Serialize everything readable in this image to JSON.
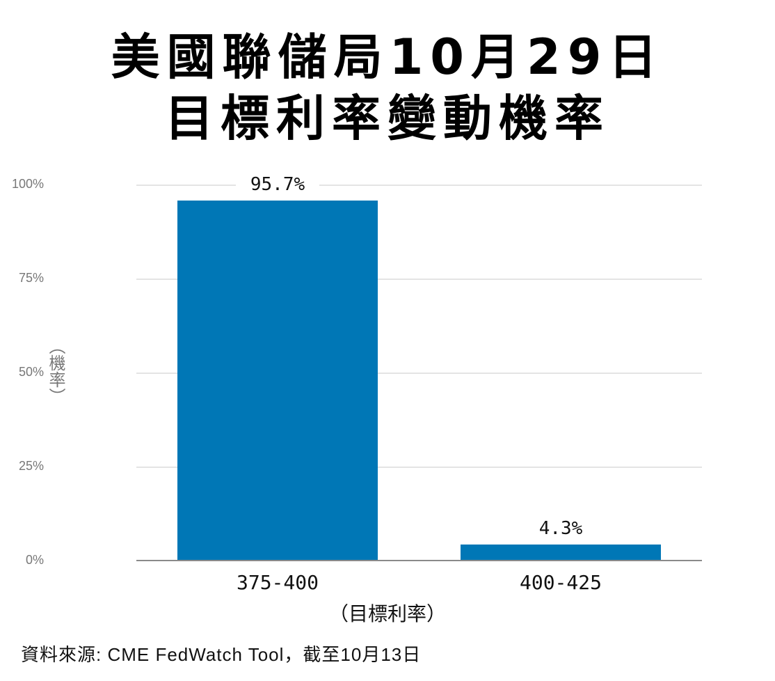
{
  "title": {
    "line1": "美國聯儲局10月29日",
    "line2": "目標利率變動機率"
  },
  "chart_data": {
    "type": "bar",
    "title": "美國聯儲局10月29日目標利率變動機率",
    "categories": [
      "375-400",
      "400-425"
    ],
    "values": [
      95.7,
      4.3
    ],
    "value_labels": [
      "95.7%",
      "4.3%"
    ],
    "xlabel": "（目標利率）",
    "ylabel": "（機率）",
    "ylim": [
      0,
      100
    ],
    "yticks": [
      "0%",
      "25%",
      "50%",
      "75%",
      "100%"
    ],
    "grid": true,
    "legend": null,
    "bar_color": "#0077b6"
  },
  "source": "資料來源: CME FedWatch Tool，截至10月13日"
}
